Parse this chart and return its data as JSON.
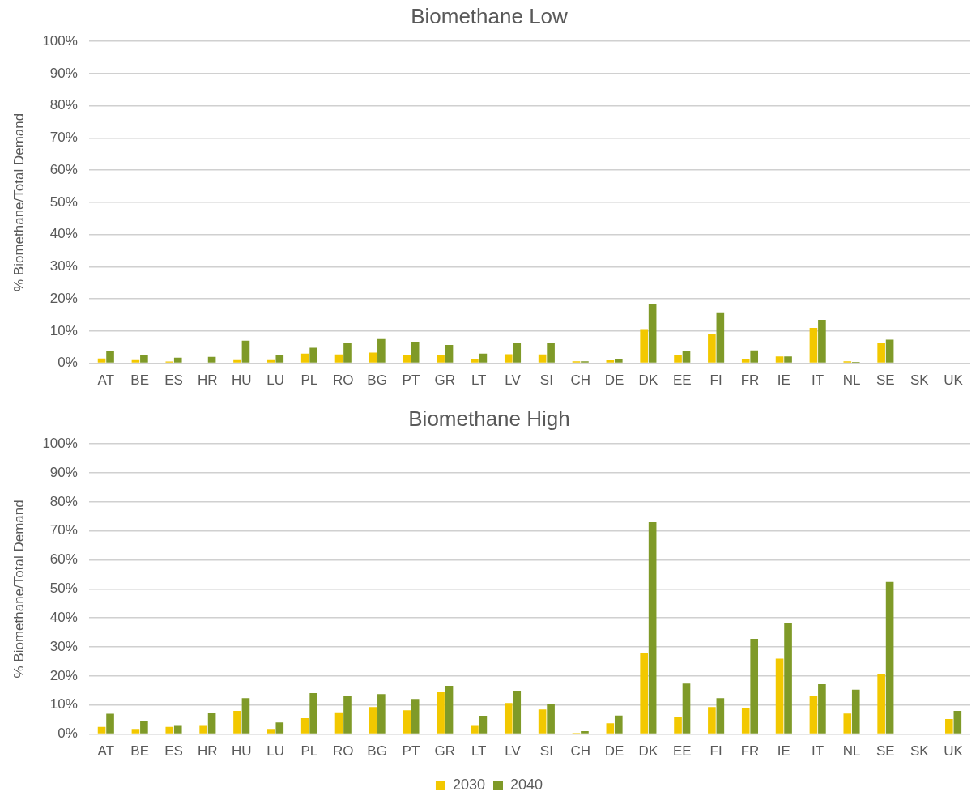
{
  "chart_data": [
    {
      "type": "bar",
      "title": "Biomethane Low",
      "ylabel": "% Biomethane/Total Demand",
      "categories": [
        "AT",
        "BE",
        "ES",
        "HR",
        "HU",
        "LU",
        "PL",
        "RO",
        "BG",
        "PT",
        "GR",
        "LT",
        "LV",
        "SI",
        "CH",
        "DE",
        "DK",
        "EE",
        "FI",
        "FR",
        "IE",
        "IT",
        "NL",
        "SE",
        "SK",
        "UK"
      ],
      "series": [
        {
          "color": "#f2c800",
          "values": [
            1.5,
            1.0,
            0.5,
            0,
            1.0,
            1.0,
            3.0,
            2.7,
            3.3,
            2.5,
            2.5,
            1.3,
            2.8,
            2.7,
            0.6,
            0.9,
            10.6,
            2.4,
            9.0,
            1.2,
            2.1,
            11.0,
            0.6,
            6.2,
            0,
            0
          ]
        },
        {
          "color": "#7f9a28",
          "values": [
            3.7,
            2.5,
            1.7,
            2.0,
            7.0,
            2.5,
            4.8,
            6.2,
            7.5,
            6.5,
            5.7,
            3.0,
            6.2,
            6.2,
            0.6,
            1.2,
            18.3,
            3.8,
            15.8,
            4.0,
            2.1,
            13.5,
            0.4,
            7.3,
            0,
            0
          ]
        }
      ],
      "ylim": [
        0,
        100
      ],
      "yticks": [
        {
          "value": 0,
          "label": "0%"
        },
        {
          "value": 10,
          "label": "10%"
        },
        {
          "value": 20,
          "label": "20%"
        },
        {
          "value": 30,
          "label": "30%"
        },
        {
          "value": 40,
          "label": "40%"
        },
        {
          "value": 50,
          "label": "50%"
        },
        {
          "value": 60,
          "label": "60%"
        },
        {
          "value": 70,
          "label": "70%"
        },
        {
          "value": 80,
          "label": "80%"
        },
        {
          "value": 90,
          "label": "90%"
        },
        {
          "value": 100,
          "label": "100%"
        }
      ],
      "grid": "y",
      "legend": false
    },
    {
      "type": "bar",
      "title": "Biomethane High",
      "ylabel": "% Biomethane/Total Demand",
      "categories": [
        "AT",
        "BE",
        "ES",
        "HR",
        "HU",
        "LU",
        "PL",
        "RO",
        "BG",
        "PT",
        "GR",
        "LT",
        "LV",
        "SI",
        "CH",
        "DE",
        "DK",
        "EE",
        "FI",
        "FR",
        "IE",
        "IT",
        "NL",
        "SE",
        "SK",
        "UK"
      ],
      "series": [
        {
          "name": "2030",
          "color": "#f2c800",
          "values": [
            2.5,
            1.8,
            2.5,
            2.8,
            8.0,
            1.8,
            5.5,
            7.5,
            9.3,
            8.2,
            14.4,
            2.8,
            10.7,
            8.5,
            0.4,
            3.7,
            28.1,
            6.0,
            9.3,
            9.1,
            26.0,
            13.0,
            7.1,
            20.7,
            0,
            5.2
          ]
        },
        {
          "name": "2040",
          "color": "#7f9a28",
          "values": [
            7.0,
            4.4,
            2.8,
            7.3,
            12.4,
            4.0,
            14.1,
            13.0,
            13.8,
            12.1,
            16.6,
            6.3,
            14.9,
            10.5,
            1.0,
            6.4,
            73.0,
            17.4,
            12.4,
            32.8,
            38.1,
            17.2,
            15.3,
            52.4,
            0,
            8.0
          ]
        }
      ],
      "ylim": [
        0,
        100
      ],
      "yticks": [
        {
          "value": 0,
          "label": "0%"
        },
        {
          "value": 10,
          "label": "10%"
        },
        {
          "value": 20,
          "label": "20%"
        },
        {
          "value": 30,
          "label": "30%"
        },
        {
          "value": 40,
          "label": "40%"
        },
        {
          "value": 50,
          "label": "50%"
        },
        {
          "value": 60,
          "label": "60%"
        },
        {
          "value": 70,
          "label": "70%"
        },
        {
          "value": 80,
          "label": "80%"
        },
        {
          "value": 90,
          "label": "90%"
        },
        {
          "value": 100,
          "label": "100%"
        }
      ],
      "grid": "y",
      "legend": "bottom"
    }
  ]
}
